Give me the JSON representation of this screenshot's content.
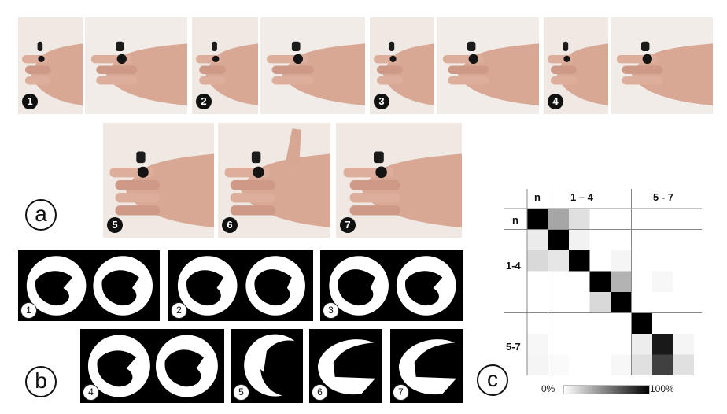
{
  "panels": {
    "a": "a",
    "b": "b",
    "c": "c"
  },
  "gestures": [
    {
      "badge": "1",
      "icon": "hand-gesture-1-photo"
    },
    {
      "badge": "2",
      "icon": "hand-gesture-2-photo"
    },
    {
      "badge": "3",
      "icon": "hand-gesture-3-photo"
    },
    {
      "badge": "4",
      "icon": "hand-gesture-4-photo"
    },
    {
      "badge": "5",
      "icon": "hand-gesture-5-photo"
    },
    {
      "badge": "6",
      "icon": "hand-gesture-6-photo"
    },
    {
      "badge": "7",
      "icon": "hand-gesture-7-photo"
    }
  ],
  "masks": [
    {
      "badge": "1"
    },
    {
      "badge": "2"
    },
    {
      "badge": "3"
    },
    {
      "badge": "4"
    },
    {
      "badge": "5"
    },
    {
      "badge": "6"
    },
    {
      "badge": "7"
    }
  ],
  "matrix": {
    "col_labels": {
      "n": "n",
      "g14": "1 – 4",
      "g57": "5 - 7"
    },
    "row_labels": {
      "n": "n",
      "g14": "1-4",
      "g57": "5-7"
    },
    "scale": {
      "min": "0%",
      "max": "100%"
    },
    "colors": {
      "low": "#ffffff",
      "high": "#000000"
    }
  }
}
